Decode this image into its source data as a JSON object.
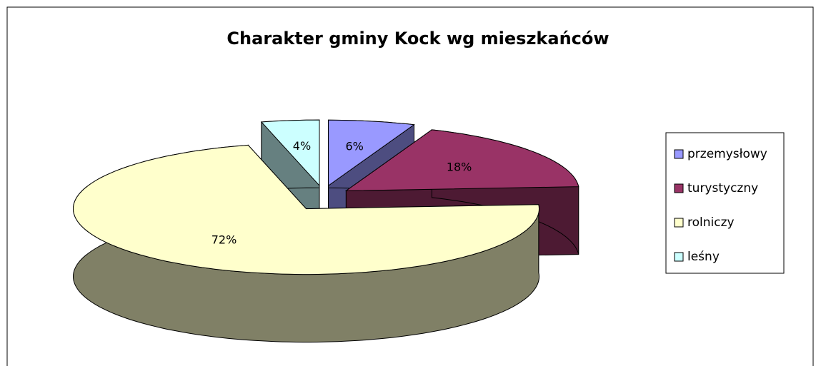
{
  "chart_data": {
    "type": "pie",
    "title": "Charakter gminy Kock wg mieszkańców",
    "categories": [
      "przemysłowy",
      "turystyczny",
      "rolniczy",
      "leśny"
    ],
    "values": [
      6,
      18,
      72,
      4
    ],
    "value_labels": [
      "6%",
      "18%",
      "72%",
      "4%"
    ],
    "colors": [
      "#9999ff",
      "#993366",
      "#ffffcc",
      "#ccffff"
    ],
    "legend": "right"
  }
}
